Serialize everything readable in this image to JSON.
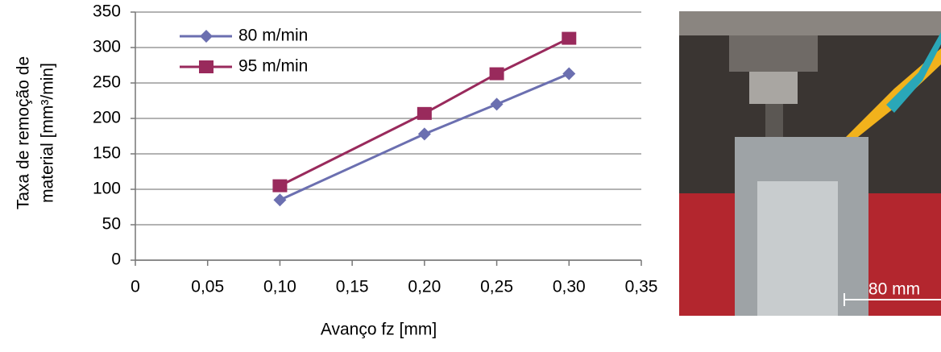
{
  "chart_data": {
    "type": "line",
    "y_label": [
      "Taxa de remoção de",
      "material  [mm³/min]"
    ],
    "x_label": "Avanço fz [mm]",
    "x": [
      0.1,
      0.2,
      0.25,
      0.3
    ],
    "series": [
      {
        "name": "80 m/min",
        "color": "#6b6fb0",
        "marker": "diamond",
        "values": [
          85,
          178,
          220,
          263
        ]
      },
      {
        "name": "95 m/min",
        "color": "#992a5c",
        "marker": "square",
        "values": [
          105,
          207,
          263,
          313
        ]
      }
    ],
    "xlim": [
      0,
      0.35
    ],
    "xticks": [
      0,
      {
        "value": 0.05,
        "label": "0,05"
      },
      {
        "value": 0.1,
        "label": "0,10"
      },
      {
        "value": 0.15,
        "label": "0,15"
      },
      {
        "value": 0.2,
        "label": "0,20"
      },
      {
        "value": 0.25,
        "label": "0,25"
      },
      {
        "value": 0.3,
        "label": "0,30"
      },
      {
        "value": 0.35,
        "label": "0,35"
      }
    ],
    "ylim": [
      0,
      350
    ],
    "yticks": [
      0,
      50,
      100,
      150,
      200,
      250,
      300,
      350
    ],
    "grid": true,
    "legend": "upper left"
  },
  "photo": {
    "scale_label": "80 mm"
  }
}
